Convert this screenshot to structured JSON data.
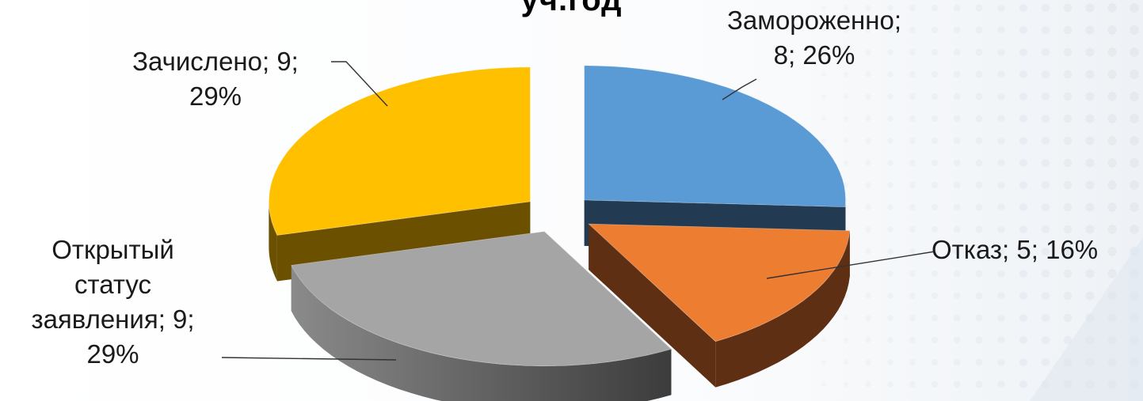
{
  "chart_data": {
    "type": "pie",
    "style": "3d-exploded",
    "title": "уч.год",
    "categories": [
      "Замороженно",
      "Отказ",
      "Открытый статус заявления",
      "Зачислено"
    ],
    "values": [
      8,
      5,
      9,
      9
    ],
    "percents": [
      26,
      16,
      29,
      29
    ],
    "colors": {
      "top": [
        "#5b9bd5",
        "#ed7d31",
        "#a5a5a5",
        "#ffc000"
      ],
      "side": [
        "#223b52",
        "#5e2f13",
        "#4a4a4a",
        "#6b5000"
      ]
    },
    "legend": "none",
    "labels": {
      "frozen": {
        "line1": "Замороженно;",
        "line2": "8; 26%"
      },
      "refusal": {
        "line1": "Отказ; 5; 16%"
      },
      "open": {
        "line1": "Открытый",
        "line2": "статус",
        "line3": "заявления; 9;",
        "line4": "29%"
      },
      "enrolled": {
        "line1": "Зачислено; 9;",
        "line2": "29%"
      }
    }
  }
}
